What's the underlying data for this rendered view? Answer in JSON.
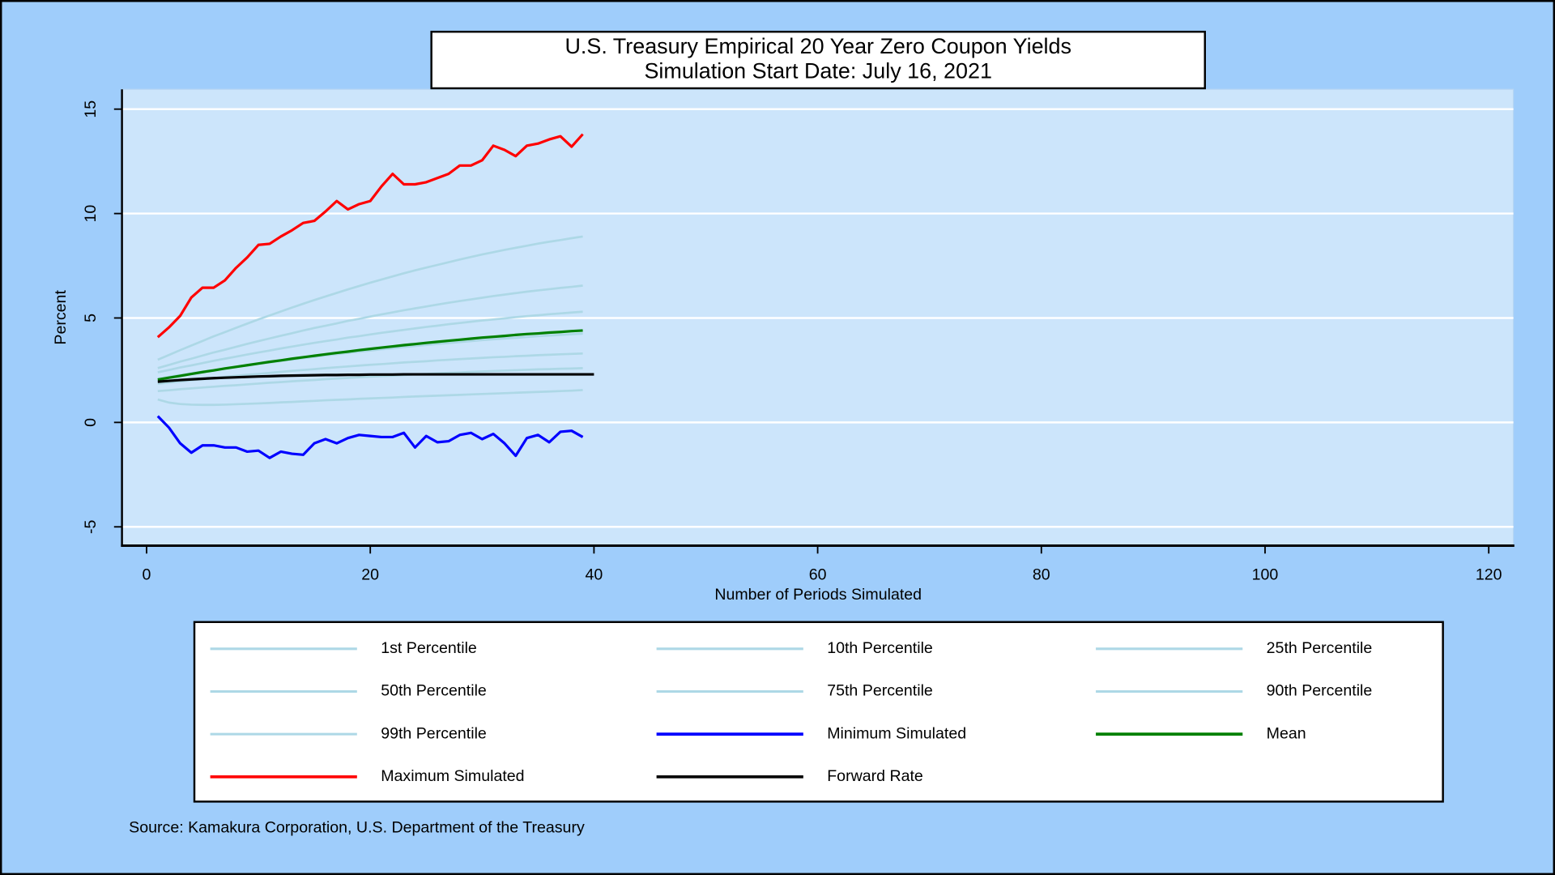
{
  "chart_data": {
    "type": "line",
    "title": "U.S. Treasury Empirical 20 Year Zero Coupon Yields",
    "subtitle": "Simulation Start Date: July 16, 2021",
    "xlabel": "Number of Periods Simulated",
    "ylabel": "Percent",
    "source": "Source: Kamakura Corporation, U.S. Department of the Treasury",
    "xlim": [
      -2.2,
      122.2
    ],
    "xticks": [
      0,
      20,
      40,
      60,
      80,
      100,
      120
    ],
    "ylim": [
      -5.9,
      15.95
    ],
    "yticks": [
      -5,
      0,
      5,
      10,
      15
    ],
    "grid": true,
    "legend": "bottom",
    "x": [
      1,
      2,
      3,
      4,
      5,
      6,
      7,
      8,
      9,
      10,
      11,
      12,
      13,
      14,
      15,
      16,
      17,
      18,
      19,
      20,
      21,
      22,
      23,
      24,
      25,
      26,
      27,
      28,
      29,
      30,
      31,
      32,
      33,
      34,
      35,
      36,
      37,
      38,
      39,
      40
    ],
    "series": [
      {
        "name": "1st Percentile",
        "color": "#add8e6",
        "values": [
          1.1,
          0.95,
          0.88,
          0.85,
          0.84,
          0.84,
          0.85,
          0.87,
          0.89,
          0.91,
          0.93,
          0.96,
          0.98,
          1.01,
          1.03,
          1.06,
          1.08,
          1.1,
          1.13,
          1.15,
          1.17,
          1.19,
          1.22,
          1.24,
          1.26,
          1.28,
          1.3,
          1.32,
          1.34,
          1.36,
          1.38,
          1.4,
          1.42,
          1.44,
          1.46,
          1.48,
          1.5,
          1.52,
          1.55,
          null
        ]
      },
      {
        "name": "10th Percentile",
        "color": "#add8e6",
        "values": [
          1.5,
          1.54,
          1.59,
          1.63,
          1.67,
          1.71,
          1.75,
          1.78,
          1.82,
          1.86,
          1.9,
          1.93,
          1.97,
          2.0,
          2.03,
          2.07,
          2.1,
          2.13,
          2.16,
          2.19,
          2.22,
          2.24,
          2.27,
          2.3,
          2.32,
          2.35,
          2.37,
          2.39,
          2.42,
          2.44,
          2.46,
          2.48,
          2.5,
          2.52,
          2.54,
          2.55,
          2.57,
          2.58,
          2.6,
          null
        ]
      },
      {
        "name": "25th Percentile",
        "color": "#add8e6",
        "values": [
          1.85,
          1.91,
          1.96,
          2.02,
          2.07,
          2.12,
          2.18,
          2.23,
          2.28,
          2.32,
          2.37,
          2.42,
          2.47,
          2.51,
          2.55,
          2.6,
          2.64,
          2.68,
          2.72,
          2.76,
          2.79,
          2.83,
          2.87,
          2.9,
          2.93,
          2.97,
          3.0,
          3.03,
          3.06,
          3.09,
          3.12,
          3.14,
          3.17,
          3.19,
          3.22,
          3.24,
          3.26,
          3.28,
          3.3,
          null
        ]
      },
      {
        "name": "50th Percentile",
        "color": "#add8e6",
        "values": [
          2.1,
          2.18,
          2.27,
          2.35,
          2.43,
          2.51,
          2.58,
          2.66,
          2.73,
          2.8,
          2.87,
          2.94,
          3.01,
          3.08,
          3.14,
          3.21,
          3.27,
          3.33,
          3.39,
          3.44,
          3.5,
          3.55,
          3.61,
          3.66,
          3.71,
          3.76,
          3.8,
          3.85,
          3.89,
          3.94,
          3.98,
          4.02,
          4.05,
          4.09,
          4.13,
          4.16,
          4.19,
          4.22,
          4.25,
          null
        ]
      },
      {
        "name": "75th Percentile",
        "color": "#add8e6",
        "values": [
          2.4,
          2.51,
          2.63,
          2.73,
          2.84,
          2.95,
          3.05,
          3.15,
          3.25,
          3.35,
          3.44,
          3.54,
          3.63,
          3.72,
          3.81,
          3.89,
          3.97,
          4.06,
          4.13,
          4.21,
          4.29,
          4.36,
          4.43,
          4.5,
          4.57,
          4.63,
          4.7,
          4.76,
          4.82,
          4.88,
          4.93,
          4.98,
          5.04,
          5.09,
          5.13,
          5.18,
          5.22,
          5.26,
          5.3,
          null
        ]
      },
      {
        "name": "90th Percentile",
        "color": "#add8e6",
        "values": [
          2.6,
          2.75,
          2.91,
          3.05,
          3.2,
          3.35,
          3.48,
          3.62,
          3.76,
          3.89,
          4.02,
          4.15,
          4.27,
          4.4,
          4.52,
          4.63,
          4.74,
          4.86,
          4.96,
          5.07,
          5.17,
          5.27,
          5.37,
          5.46,
          5.55,
          5.64,
          5.73,
          5.81,
          5.89,
          5.97,
          6.05,
          6.12,
          6.19,
          6.26,
          6.32,
          6.38,
          6.44,
          6.49,
          6.55,
          null
        ]
      },
      {
        "name": "99th Percentile",
        "color": "#add8e6",
        "values": [
          3.0,
          3.23,
          3.46,
          3.68,
          3.9,
          4.12,
          4.32,
          4.53,
          4.73,
          4.93,
          5.12,
          5.31,
          5.5,
          5.68,
          5.86,
          6.03,
          6.2,
          6.37,
          6.53,
          6.69,
          6.84,
          6.99,
          7.14,
          7.28,
          7.41,
          7.54,
          7.67,
          7.8,
          7.92,
          8.04,
          8.15,
          8.26,
          8.36,
          8.46,
          8.56,
          8.65,
          8.73,
          8.82,
          8.9,
          null
        ]
      },
      {
        "name": "Minimum Simulated",
        "color": "#0000ff",
        "values": [
          0.3,
          -0.25,
          -1.0,
          -1.45,
          -1.1,
          -1.1,
          -1.2,
          -1.2,
          -1.4,
          -1.35,
          -1.7,
          -1.4,
          -1.5,
          -1.55,
          -1.0,
          -0.8,
          -1.0,
          -0.75,
          -0.6,
          -0.65,
          -0.7,
          -0.7,
          -0.5,
          -1.2,
          -0.65,
          -0.95,
          -0.9,
          -0.6,
          -0.5,
          -0.8,
          -0.55,
          -1.0,
          -1.6,
          -0.75,
          -0.6,
          -0.95,
          -0.45,
          -0.4,
          -0.7,
          null
        ]
      },
      {
        "name": "Mean",
        "color": "#008000",
        "values": [
          2.05,
          2.14,
          2.23,
          2.32,
          2.41,
          2.49,
          2.58,
          2.66,
          2.74,
          2.82,
          2.9,
          2.97,
          3.05,
          3.12,
          3.19,
          3.26,
          3.33,
          3.39,
          3.46,
          3.52,
          3.58,
          3.64,
          3.7,
          3.75,
          3.81,
          3.86,
          3.91,
          3.96,
          4.01,
          4.06,
          4.1,
          4.14,
          4.19,
          4.23,
          4.26,
          4.3,
          4.33,
          4.37,
          4.4,
          null
        ]
      },
      {
        "name": "Maximum Simulated",
        "color": "#ff0000",
        "values": [
          4.08,
          4.55,
          5.1,
          5.98,
          6.45,
          6.45,
          6.8,
          7.4,
          7.9,
          8.5,
          8.55,
          8.9,
          9.2,
          9.55,
          9.65,
          10.1,
          10.6,
          10.2,
          10.45,
          10.6,
          11.3,
          11.9,
          11.4,
          11.4,
          11.5,
          11.7,
          11.9,
          12.3,
          12.3,
          12.55,
          13.25,
          13.05,
          12.75,
          13.25,
          13.35,
          13.55,
          13.7,
          13.2,
          13.8,
          null
        ]
      },
      {
        "name": "Forward Rate",
        "color": "#000000",
        "values": [
          1.95,
          1.99,
          2.03,
          2.06,
          2.09,
          2.12,
          2.14,
          2.16,
          2.18,
          2.2,
          2.21,
          2.23,
          2.24,
          2.25,
          2.26,
          2.27,
          2.27,
          2.28,
          2.28,
          2.29,
          2.29,
          2.29,
          2.3,
          2.3,
          2.3,
          2.3,
          2.3,
          2.3,
          2.3,
          2.3,
          2.3,
          2.3,
          2.3,
          2.3,
          2.3,
          2.3,
          2.3,
          2.3,
          2.3,
          2.3
        ]
      }
    ]
  }
}
